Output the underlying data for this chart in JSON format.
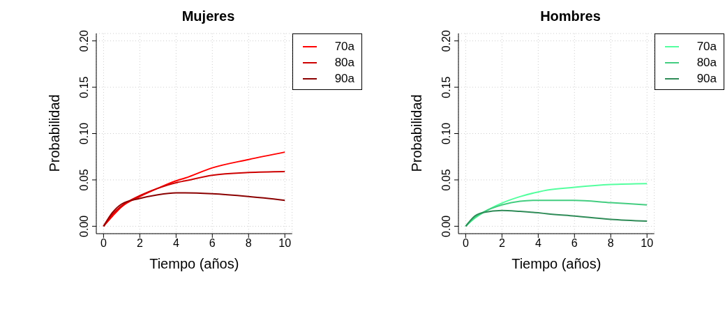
{
  "chart_data": [
    {
      "type": "line",
      "title": "Mujeres",
      "xlabel": "Tiempo (años)",
      "ylabel": "Probabilidad",
      "x": [
        0,
        0.5,
        1,
        2,
        3,
        4,
        4.5,
        6,
        8,
        10
      ],
      "series": [
        {
          "name": "70a",
          "color": "#ff0000",
          "values": [
            0,
            0.011,
            0.021,
            0.032,
            0.041,
            0.049,
            0.052,
            0.063,
            0.072,
            0.08
          ]
        },
        {
          "name": "80a",
          "color": "#cd0000",
          "values": [
            0,
            0.013,
            0.022,
            0.033,
            0.041,
            0.047,
            0.049,
            0.055,
            0.058,
            0.059
          ]
        },
        {
          "name": "90a",
          "color": "#8b0000",
          "values": [
            0,
            0.015,
            0.024,
            0.03,
            0.034,
            0.036,
            0.036,
            0.035,
            0.032,
            0.028
          ]
        }
      ],
      "xlim": [
        -0.4,
        10.4
      ],
      "xticks": [
        0,
        2,
        4,
        6,
        8,
        10
      ],
      "ylim": [
        -0.008,
        0.208
      ],
      "yticks": [
        {
          "value": 0,
          "label": "0.00"
        },
        {
          "value": 0.05,
          "label": "0.05"
        },
        {
          "value": 0.1,
          "label": "0.10"
        },
        {
          "value": 0.15,
          "label": "0.15"
        },
        {
          "value": 0.2,
          "label": "0.20"
        }
      ],
      "grid": true,
      "legend": "top right",
      "marker": "none",
      "line_style": "solid"
    },
    {
      "type": "line",
      "title": "Hombres",
      "xlabel": "Tiempo (años)",
      "ylabel": "Probabilidad",
      "x": [
        0,
        0.5,
        1,
        2,
        3,
        4,
        4.5,
        6,
        8,
        10
      ],
      "series": [
        {
          "name": "70a",
          "color": "#54ff9f",
          "values": [
            0,
            0.0085,
            0.015,
            0.025,
            0.032,
            0.037,
            0.039,
            0.042,
            0.045,
            0.046
          ]
        },
        {
          "name": "80a",
          "color": "#43cd80",
          "values": [
            0,
            0.0095,
            0.0155,
            0.023,
            0.027,
            0.028,
            0.028,
            0.028,
            0.0255,
            0.023
          ]
        },
        {
          "name": "90a",
          "color": "#2e8b57",
          "values": [
            0,
            0.011,
            0.015,
            0.017,
            0.016,
            0.0145,
            0.0135,
            0.011,
            0.0075,
            0.0055
          ]
        }
      ],
      "xlim": [
        -0.4,
        10.4
      ],
      "xticks": [
        0,
        2,
        4,
        6,
        8,
        10
      ],
      "ylim": [
        -0.008,
        0.208
      ],
      "yticks": [
        {
          "value": 0,
          "label": "0.00"
        },
        {
          "value": 0.05,
          "label": "0.05"
        },
        {
          "value": 0.1,
          "label": "0.10"
        },
        {
          "value": 0.15,
          "label": "0.15"
        },
        {
          "value": 0.2,
          "label": "0.20"
        }
      ],
      "grid": true,
      "legend": "top right",
      "marker": "none",
      "line_style": "solid"
    }
  ]
}
